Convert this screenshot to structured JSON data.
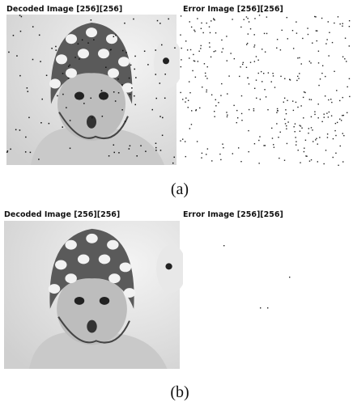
{
  "panels": [
    {
      "decoded_title": "Decoded Image [256][256]",
      "error_title": "Error Image [256][256]",
      "caption": "(a)"
    },
    {
      "decoded_title": "Decoded Image [256][256]",
      "error_title": "Error Image [256][256]",
      "caption": "(b)"
    }
  ]
}
